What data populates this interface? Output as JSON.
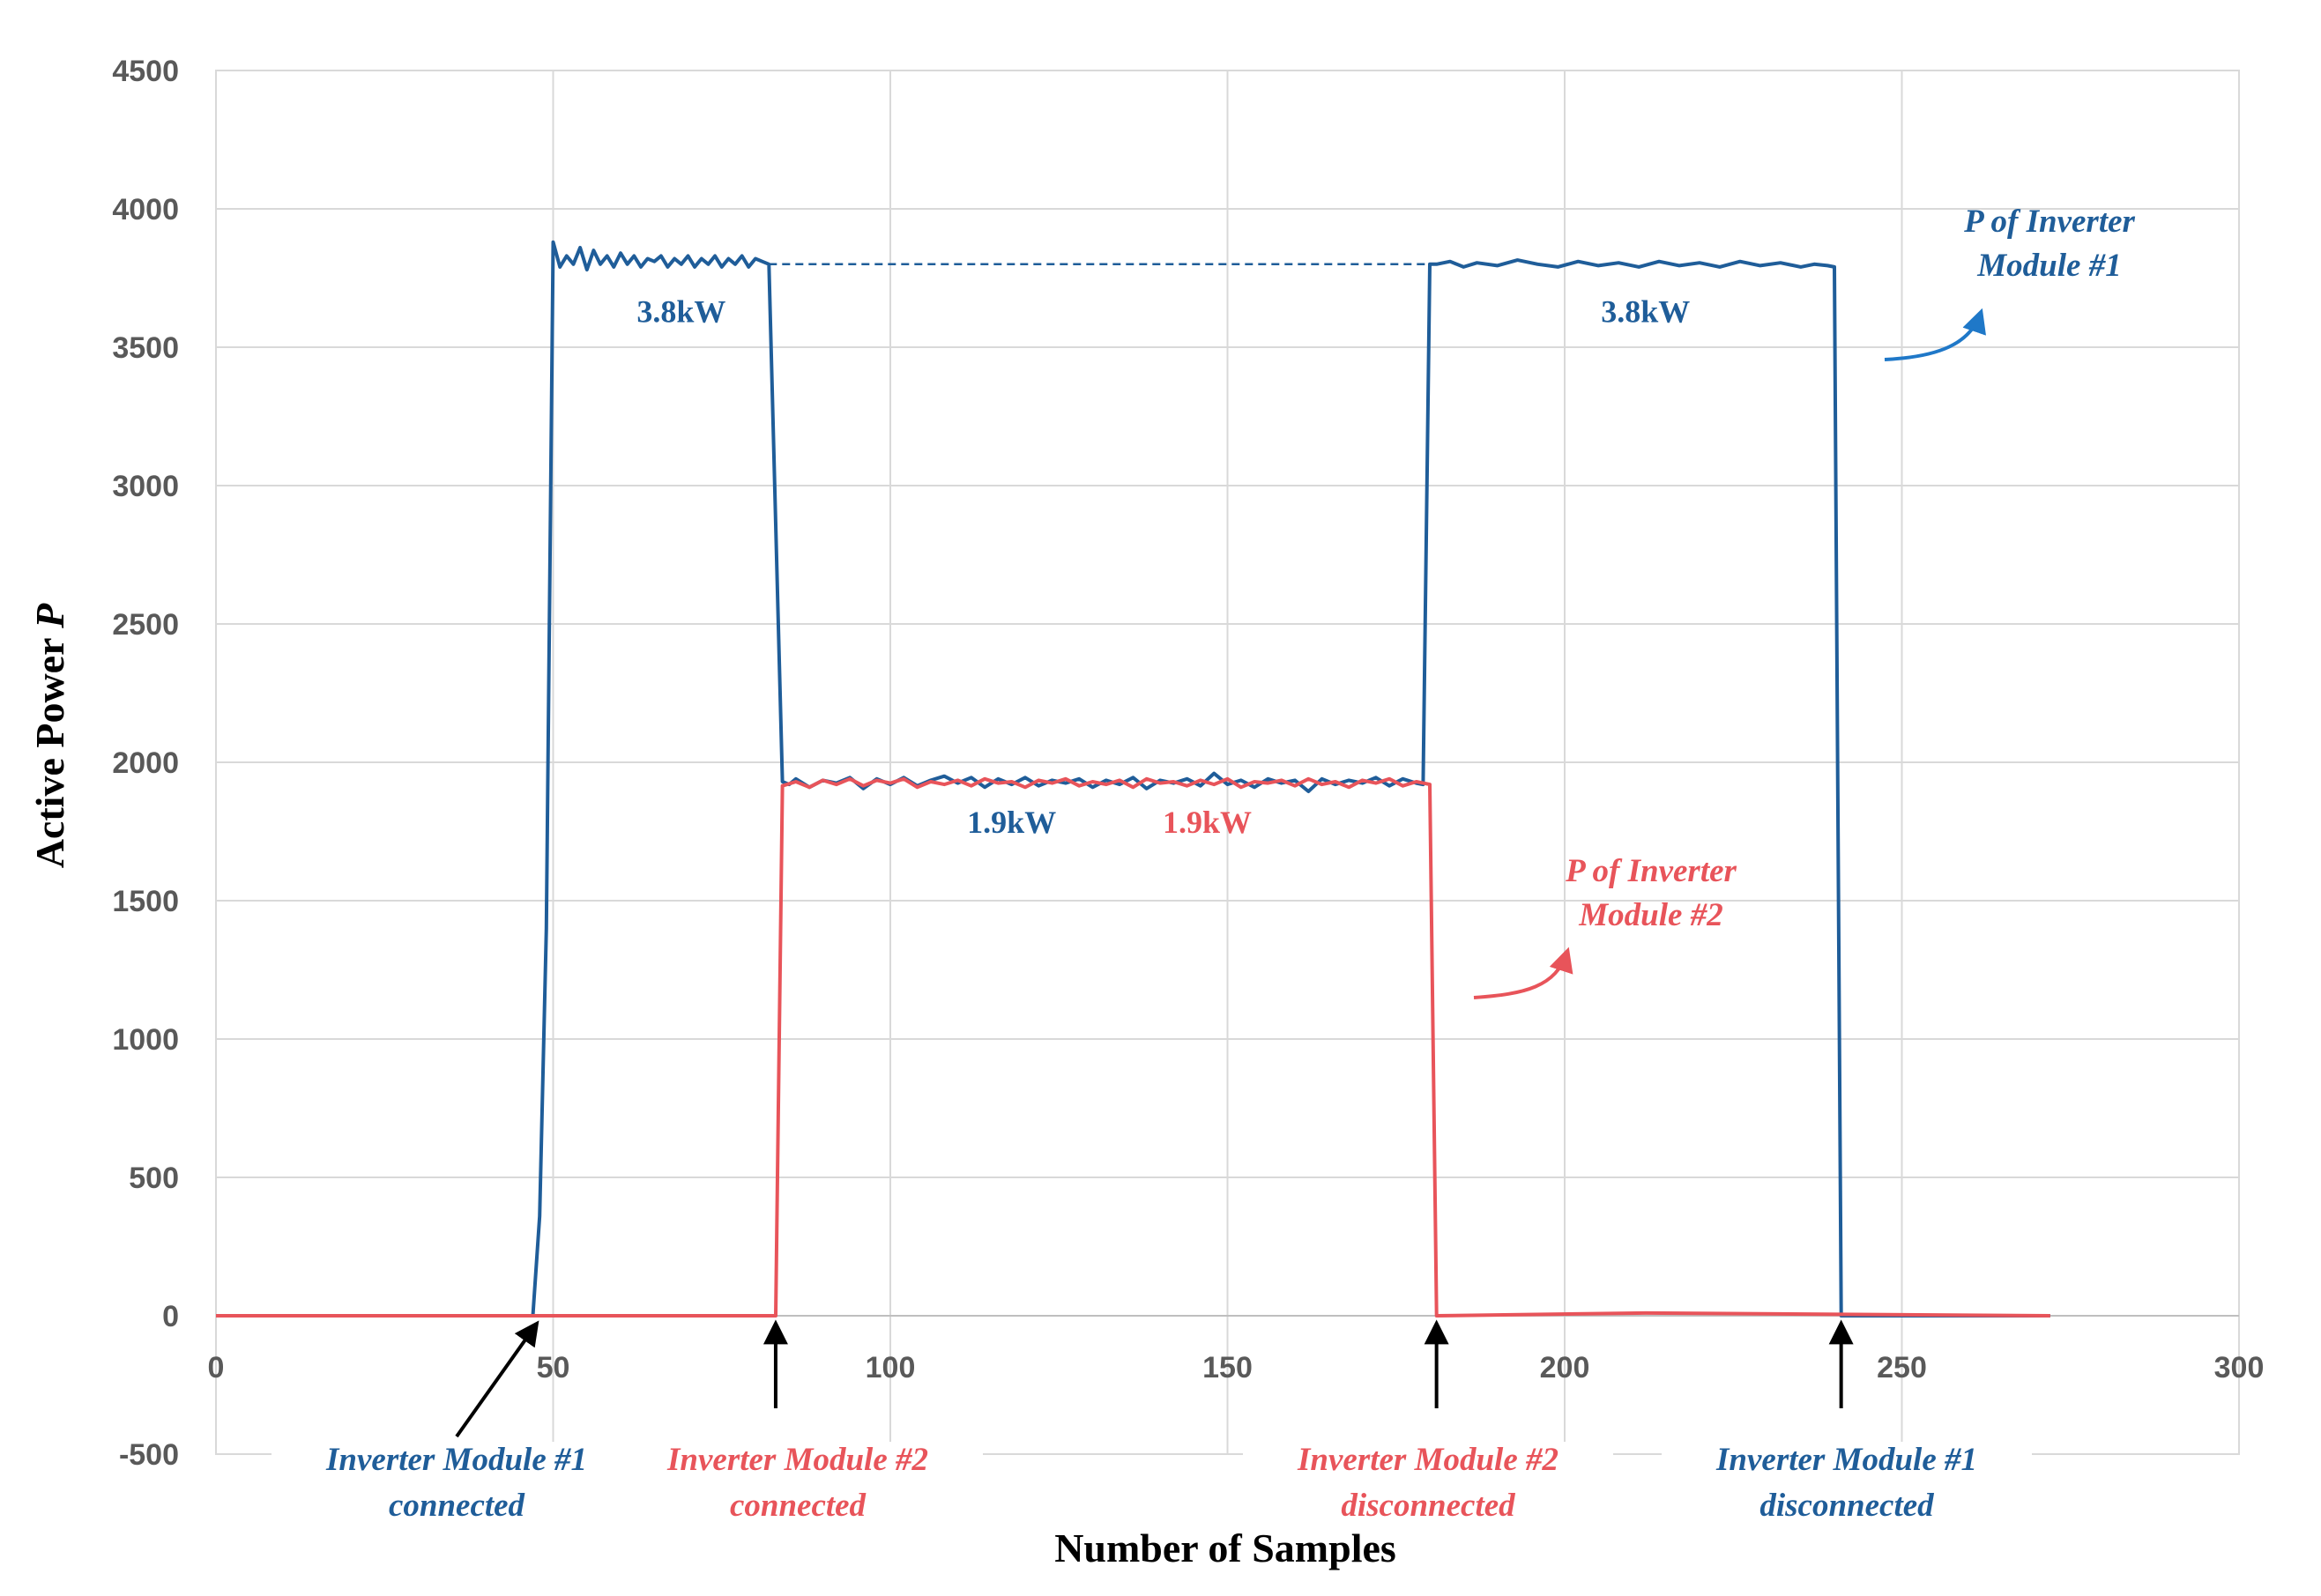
{
  "colors": {
    "module1": "#1f5d99",
    "module2": "#e8545a",
    "arrow1": "#1f78c8",
    "grid": "#d9d9d9",
    "black": "#000000"
  },
  "chart_data": {
    "type": "line",
    "xlabel": "Number of Samples",
    "ylabel_main": "Active Power ",
    "ylabel_var": "P",
    "xlim": [
      0,
      300
    ],
    "ylim": [
      -500,
      4500
    ],
    "xticks": [
      "0",
      "50",
      "100",
      "150",
      "200",
      "250",
      "300"
    ],
    "yticks": [
      "-500",
      "0",
      "500",
      "1000",
      "1500",
      "2000",
      "2500",
      "3000",
      "3500",
      "4000",
      "4500"
    ],
    "grid": true,
    "series": [
      {
        "key": "module1",
        "x": [
          0,
          47,
          48,
          49,
          50,
          51,
          52,
          53,
          54,
          55,
          56,
          57,
          58,
          59,
          60,
          61,
          62,
          63,
          64,
          65,
          66,
          67,
          68,
          69,
          70,
          71,
          72,
          73,
          74,
          75,
          76,
          77,
          78,
          79,
          80,
          81,
          82,
          84,
          85,
          86,
          88,
          90,
          92,
          94,
          96,
          98,
          100,
          102,
          104,
          106,
          108,
          110,
          112,
          114,
          116,
          118,
          120,
          122,
          124,
          126,
          128,
          130,
          132,
          134,
          136,
          138,
          140,
          142,
          144,
          146,
          148,
          150,
          152,
          154,
          156,
          158,
          160,
          162,
          164,
          166,
          168,
          170,
          172,
          174,
          176,
          178,
          179,
          180,
          181,
          183,
          185,
          187,
          190,
          193,
          196,
          199,
          202,
          205,
          208,
          211,
          214,
          217,
          220,
          223,
          226,
          229,
          232,
          235,
          237,
          239,
          240,
          241,
          242,
          260,
          272
        ],
        "y": [
          0,
          0,
          360,
          1400,
          3880,
          3790,
          3830,
          3800,
          3860,
          3780,
          3850,
          3800,
          3830,
          3790,
          3840,
          3800,
          3830,
          3790,
          3820,
          3810,
          3830,
          3790,
          3820,
          3800,
          3830,
          3790,
          3820,
          3800,
          3830,
          3790,
          3820,
          3800,
          3830,
          3790,
          3820,
          3810,
          3800,
          1930,
          1920,
          1940,
          1910,
          1935,
          1925,
          1945,
          1905,
          1940,
          1920,
          1945,
          1915,
          1935,
          1950,
          1925,
          1945,
          1910,
          1940,
          1920,
          1945,
          1915,
          1935,
          1925,
          1940,
          1910,
          1935,
          1920,
          1945,
          1905,
          1935,
          1925,
          1940,
          1915,
          1960,
          1920,
          1935,
          1910,
          1940,
          1925,
          1935,
          1895,
          1940,
          1920,
          1935,
          1925,
          1945,
          1915,
          1940,
          1925,
          1920,
          3800,
          3800,
          3810,
          3790,
          3805,
          3795,
          3815,
          3800,
          3790,
          3810,
          3795,
          3805,
          3790,
          3810,
          3795,
          3805,
          3790,
          3810,
          3795,
          3805,
          3790,
          3800,
          3795,
          3790,
          0,
          0,
          0,
          0
        ]
      },
      {
        "key": "module2",
        "x": [
          0,
          83,
          84,
          86,
          88,
          90,
          92,
          94,
          96,
          98,
          100,
          102,
          104,
          106,
          108,
          110,
          112,
          114,
          116,
          118,
          120,
          122,
          124,
          126,
          128,
          130,
          132,
          134,
          136,
          138,
          140,
          142,
          144,
          146,
          148,
          150,
          152,
          154,
          156,
          158,
          160,
          162,
          164,
          166,
          168,
          170,
          172,
          174,
          176,
          178,
          180,
          181,
          212,
          272
        ],
        "y": [
          0,
          0,
          1915,
          1930,
          1910,
          1935,
          1920,
          1940,
          1915,
          1935,
          1925,
          1940,
          1910,
          1930,
          1920,
          1935,
          1915,
          1940,
          1925,
          1930,
          1910,
          1935,
          1925,
          1940,
          1915,
          1930,
          1920,
          1935,
          1910,
          1940,
          1925,
          1930,
          1915,
          1935,
          1920,
          1940,
          1910,
          1930,
          1925,
          1935,
          1915,
          1940,
          1920,
          1930,
          1910,
          1935,
          1925,
          1940,
          1915,
          1930,
          1920,
          0,
          10,
          0
        ]
      }
    ],
    "reference_line": {
      "x": [
        82,
        180
      ],
      "y": 3800,
      "style": "dashed",
      "color": "module1"
    },
    "data_labels": [
      {
        "text": "3.8kW",
        "x": 69,
        "y": 3590,
        "color": "module1"
      },
      {
        "text": "3.8kW",
        "x": 212,
        "y": 3590,
        "color": "module1"
      },
      {
        "text": "1.9kW",
        "x": 118,
        "y": 1745,
        "color": "module1"
      },
      {
        "text": "1.9kW",
        "x": 147,
        "y": 1745,
        "color": "module2"
      }
    ],
    "annotations": [
      {
        "lines": [
          "P of Inverter",
          "Module #1"
        ],
        "color": "module1",
        "text_x": 2325,
        "text_y": [
          263,
          313
        ]
      },
      {
        "lines": [
          "P of Inverter",
          "Module #2"
        ],
        "color": "module2",
        "text_x": 1873,
        "text_y": 1000
      }
    ],
    "events": [
      {
        "lines": [
          "Inverter Module #1",
          "connected"
        ],
        "color": "module1",
        "x": 48
      },
      {
        "lines": [
          "Inverter Module #2",
          "connected"
        ],
        "color": "module2",
        "x": 83
      },
      {
        "lines": [
          "Inverter Module #2",
          "disconnected"
        ],
        "color": "module2",
        "x": 181
      },
      {
        "lines": [
          "Inverter Module #1",
          "disconnected"
        ],
        "color": "module1",
        "x": 241
      }
    ]
  }
}
